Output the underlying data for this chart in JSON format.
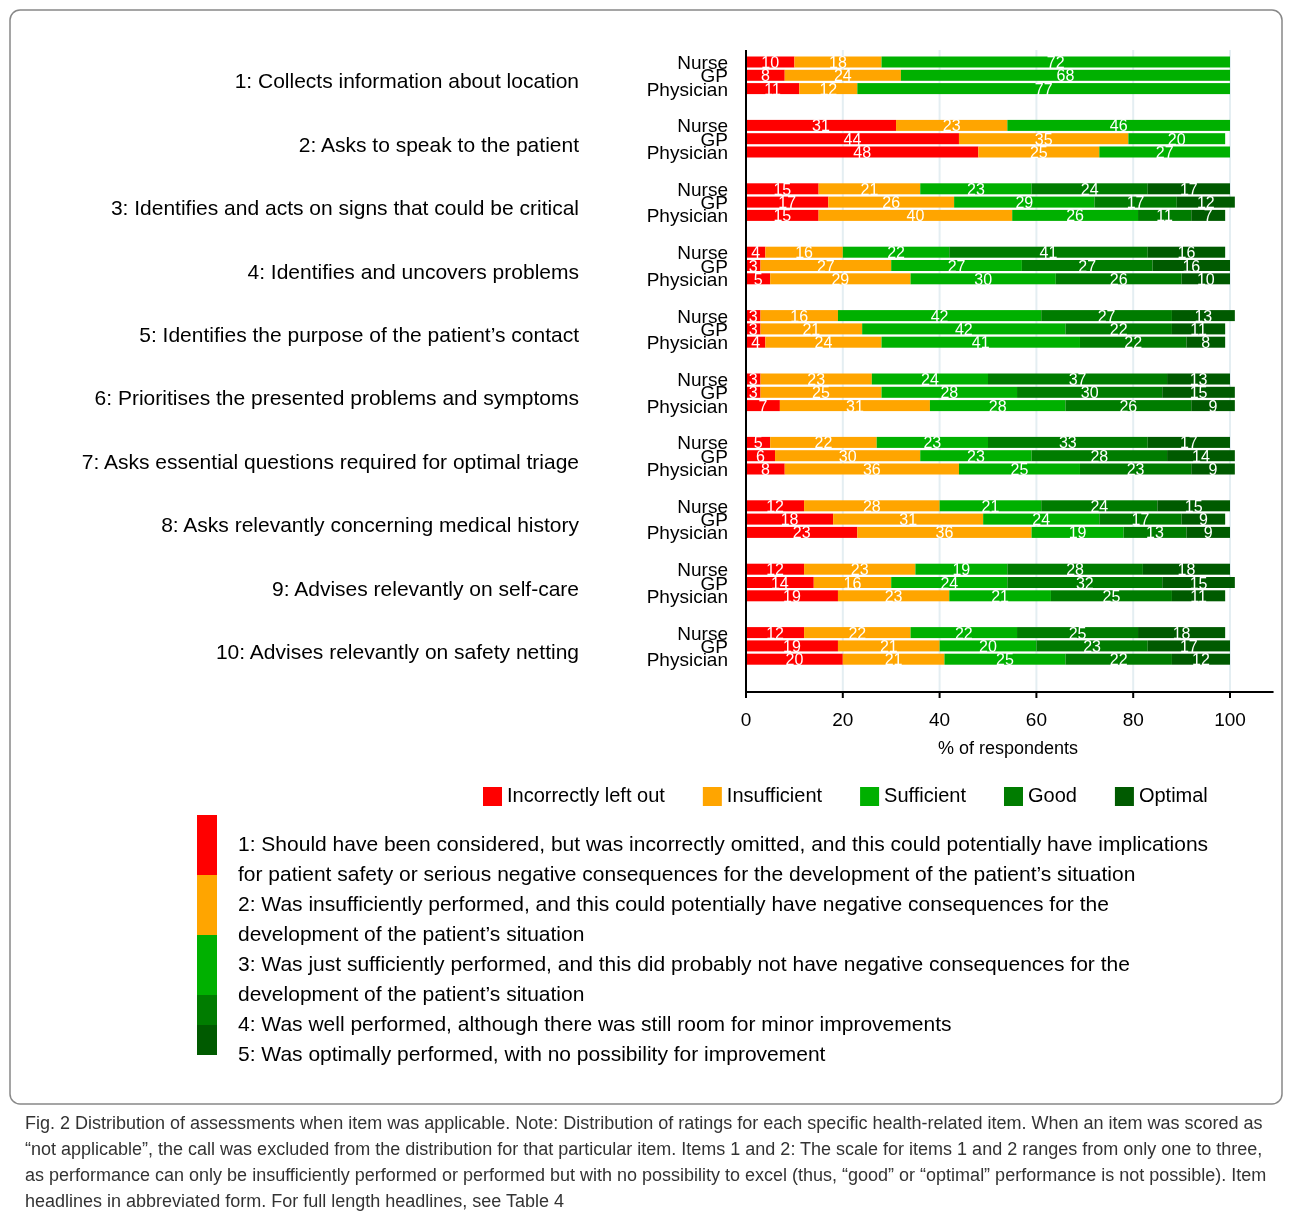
{
  "chart_data": {
    "type": "bar",
    "orientation": "horizontal",
    "stacked": true,
    "categories": [
      "Nurse",
      "GP",
      "Physician",
      "Nurse",
      "GP",
      "Physician",
      "Nurse",
      "GP",
      "Physician",
      "Nurse",
      "GP",
      "Physician",
      "Nurse",
      "GP",
      "Physician",
      "Nurse",
      "GP",
      "Physician",
      "Nurse",
      "GP",
      "Physician",
      "Nurse",
      "GP",
      "Physician",
      "Nurse",
      "GP",
      "Physician",
      "Nurse",
      "GP",
      "Physician"
    ],
    "series": [
      {
        "name": "Incorrectly left out",
        "color": "#ff0000",
        "values": [
          10,
          8,
          11,
          31,
          44,
          48,
          15,
          17,
          15,
          4,
          3,
          5,
          3,
          3,
          4,
          3,
          3,
          7,
          5,
          6,
          8,
          12,
          18,
          23,
          12,
          14,
          19,
          12,
          19,
          20
        ]
      },
      {
        "name": "Insufficient",
        "color": "#ffa500",
        "values": [
          18,
          24,
          12,
          23,
          35,
          25,
          21,
          26,
          40,
          16,
          27,
          29,
          16,
          21,
          24,
          23,
          25,
          31,
          22,
          30,
          36,
          28,
          31,
          36,
          23,
          16,
          23,
          22,
          21,
          21
        ]
      },
      {
        "name": "Sufficient",
        "color": "#00b000",
        "values": [
          72,
          68,
          77,
          46,
          20,
          27,
          23,
          29,
          26,
          22,
          27,
          30,
          42,
          42,
          41,
          24,
          28,
          28,
          23,
          23,
          25,
          21,
          24,
          19,
          19,
          24,
          21,
          22,
          20,
          25
        ]
      },
      {
        "name": "Good",
        "color": "#007c00",
        "values": [
          null,
          null,
          null,
          null,
          null,
          null,
          24,
          17,
          11,
          41,
          27,
          26,
          27,
          22,
          22,
          37,
          30,
          26,
          33,
          28,
          23,
          24,
          17,
          13,
          28,
          32,
          25,
          25,
          23,
          22
        ]
      },
      {
        "name": "Optimal",
        "color": "#005a00",
        "values": [
          null,
          null,
          null,
          null,
          null,
          null,
          17,
          12,
          7,
          16,
          16,
          10,
          13,
          11,
          8,
          13,
          15,
          9,
          17,
          14,
          9,
          15,
          9,
          9,
          18,
          15,
          11,
          18,
          17,
          12
        ]
      }
    ],
    "xlim": [
      0,
      109
    ],
    "xticks": [
      0,
      20,
      40,
      60,
      80,
      100
    ],
    "xlabel": "% of respondents",
    "grid": "x",
    "legend": "bottom",
    "data_labels": true,
    "annotations": [
      "1: Collects information about location",
      "2: Asks to speak to the patient",
      "3: Identifies and acts on signs that could be critical",
      "4: Identifies and uncovers problems",
      "5: Identifies the purpose of the patient’s contact",
      "6: Prioritises the presented problems and symptoms",
      "7: Asks essential questions required for optimal triage",
      "8: Asks relevantly concerning medical history",
      "9: Advises relevantly on self-care",
      "10: Advises relevantly on safety netting",
      "1: Should have been considered, but was incorrectly omitted, and this could potentially have implications for patient safety or serious negative consequences for the development of the patient’s situation",
      "2: Was insufficiently performed, and this could potentially have negative consequences for the development of the patient’s situation",
      "3: Was just sufficiently performed, and this did probably not have negative consequences for the development of the patient’s situation",
      "4: Was well performed, although there was still room for minor improvements",
      "5: Was optimally performed, with no possibility for improvement",
      "Fig. 2 Distribution of assessments when item was applicable. Note: Distribution of ratings for each specific health-related item. When an item was scored as “not applicable”, the call was excluded from the distribution for that particular item. Items 1 and 2: The scale for items 1 and 2 ranges from only one to three, as performance can only be insufficiently performed or performed but with no possibility to excel (thus, “good” or “optimal” performance is not possible). Item headlines in abbreviated form. For full length headlines, see Table 4"
    ]
  }
}
